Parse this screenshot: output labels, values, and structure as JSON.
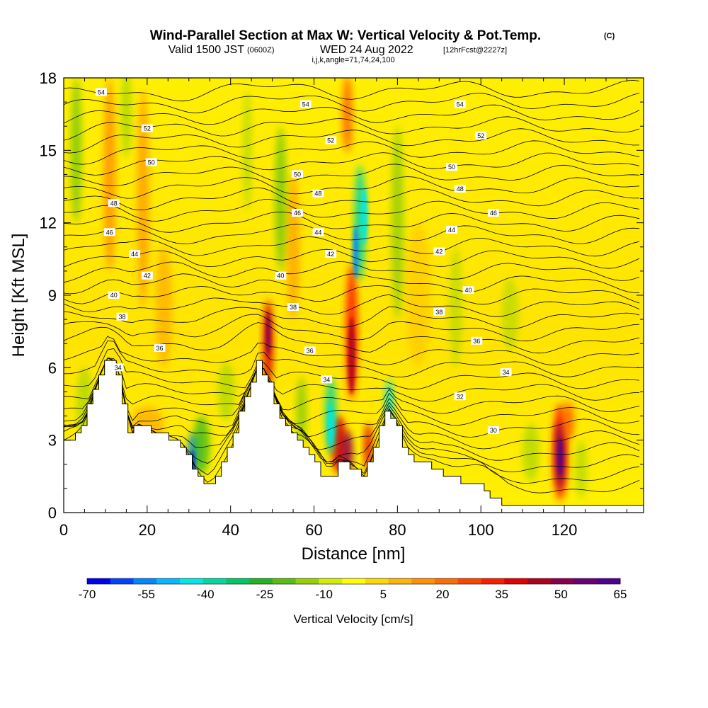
{
  "title": {
    "main": "Wind-Parallel Section at Max W: Vertical Velocity & Pot.Temp.",
    "units": "(C)",
    "valid_prefix": "Valid 1500 JST",
    "valid_utc": "(0600Z)",
    "valid_date": "WED 24 Aug 2022",
    "forecast": "[12hrFcst@2227z]",
    "params": "i,j,k,angle=71,74,24,100"
  },
  "chart_data": {
    "type": "heatmap",
    "xlabel": "Distance [nm]",
    "ylabel": "Height [Kft MSL]",
    "xlim": [
      0,
      139
    ],
    "ylim": [
      0,
      18
    ],
    "x_ticks": [
      0,
      20,
      40,
      60,
      80,
      100,
      120
    ],
    "y_ticks": [
      0,
      3,
      6,
      9,
      12,
      15,
      18
    ],
    "colorbar": {
      "title": "Vertical Velocity [cm/s]",
      "tick_labels": [
        "-70",
        "-55",
        "-40",
        "-25",
        "-10",
        "5",
        "20",
        "35",
        "50",
        "65"
      ],
      "colors": [
        "#0000f0",
        "#0044ff",
        "#0088ff",
        "#00bbff",
        "#00e8e8",
        "#00d8a0",
        "#00c864",
        "#22b422",
        "#58bf10",
        "#96d200",
        "#d4ee00",
        "#ffff00",
        "#ffd800",
        "#ffb400",
        "#ff9000",
        "#ff6c00",
        "#ff4400",
        "#ff1c00",
        "#e00000",
        "#b00020",
        "#8a0050",
        "#6a0078",
        "#500090"
      ]
    },
    "terrain_profile": [
      [
        0,
        3
      ],
      [
        3,
        3.2
      ],
      [
        5,
        3.6
      ],
      [
        7,
        4.8
      ],
      [
        9,
        5.8
      ],
      [
        11,
        6.6
      ],
      [
        12,
        6.3
      ],
      [
        14,
        5.4
      ],
      [
        15,
        4.2
      ],
      [
        16,
        3.3
      ],
      [
        17,
        3.3
      ],
      [
        18,
        3.6
      ],
      [
        20,
        3.5
      ],
      [
        22,
        3.3
      ],
      [
        25,
        3.2
      ],
      [
        28,
        3.0
      ],
      [
        30,
        2.4
      ],
      [
        31,
        2.0
      ],
      [
        33,
        1.5
      ],
      [
        35,
        1.0
      ],
      [
        37,
        1.6
      ],
      [
        39,
        2.3
      ],
      [
        41,
        3.0
      ],
      [
        43,
        4.3
      ],
      [
        45,
        5.3
      ],
      [
        47,
        6.3
      ],
      [
        49,
        5.6
      ],
      [
        51,
        4.6
      ],
      [
        53,
        3.6
      ],
      [
        55,
        3.3
      ],
      [
        57,
        3.1
      ],
      [
        59,
        2.6
      ],
      [
        61,
        2.0
      ],
      [
        63,
        1.4
      ],
      [
        65,
        1.6
      ],
      [
        66,
        2.0
      ],
      [
        68,
        2.0
      ],
      [
        70,
        1.8
      ],
      [
        72,
        1.4
      ],
      [
        74,
        2.3
      ],
      [
        76,
        3.3
      ],
      [
        78,
        4.3
      ],
      [
        80,
        3.7
      ],
      [
        82,
        2.8
      ],
      [
        84,
        2.3
      ],
      [
        86,
        2.0
      ],
      [
        88,
        2.0
      ],
      [
        90,
        1.8
      ],
      [
        92,
        1.6
      ],
      [
        94,
        1.4
      ],
      [
        96,
        1.3
      ],
      [
        98,
        1.2
      ],
      [
        100,
        1.1
      ],
      [
        102,
        0.8
      ],
      [
        104,
        0.6
      ],
      [
        106,
        0.3
      ],
      [
        139,
        0.3
      ]
    ],
    "isentrope_labels": [
      {
        "label": "54",
        "x": 9,
        "y": 17.4
      },
      {
        "label": "54",
        "x": 58,
        "y": 16.9
      },
      {
        "label": "54",
        "x": 95,
        "y": 16.9
      },
      {
        "label": "52",
        "x": 20,
        "y": 15.9
      },
      {
        "label": "52",
        "x": 64,
        "y": 15.4
      },
      {
        "label": "52",
        "x": 100,
        "y": 15.6
      },
      {
        "label": "50",
        "x": 21,
        "y": 14.5
      },
      {
        "label": "50",
        "x": 56,
        "y": 14.0
      },
      {
        "label": "50",
        "x": 93,
        "y": 14.3
      },
      {
        "label": "48",
        "x": 12,
        "y": 12.8
      },
      {
        "label": "48",
        "x": 61,
        "y": 13.2
      },
      {
        "label": "48",
        "x": 95,
        "y": 13.4
      },
      {
        "label": "46",
        "x": 11,
        "y": 11.6
      },
      {
        "label": "46",
        "x": 56,
        "y": 12.4
      },
      {
        "label": "46",
        "x": 103,
        "y": 12.4
      },
      {
        "label": "44",
        "x": 17,
        "y": 10.7
      },
      {
        "label": "44",
        "x": 61,
        "y": 11.6
      },
      {
        "label": "44",
        "x": 93,
        "y": 11.7
      },
      {
        "label": "42",
        "x": 20,
        "y": 9.8
      },
      {
        "label": "42",
        "x": 64,
        "y": 10.7
      },
      {
        "label": "42",
        "x": 90,
        "y": 10.8
      },
      {
        "label": "40",
        "x": 12,
        "y": 9.0
      },
      {
        "label": "40",
        "x": 52,
        "y": 9.8
      },
      {
        "label": "40",
        "x": 97,
        "y": 9.2
      },
      {
        "label": "38",
        "x": 14,
        "y": 8.1
      },
      {
        "label": "38",
        "x": 55,
        "y": 8.5
      },
      {
        "label": "38",
        "x": 90,
        "y": 8.3
      },
      {
        "label": "36",
        "x": 23,
        "y": 6.8
      },
      {
        "label": "36",
        "x": 59,
        "y": 6.7
      },
      {
        "label": "36",
        "x": 99,
        "y": 7.1
      },
      {
        "label": "34",
        "x": 13,
        "y": 6.0
      },
      {
        "label": "34",
        "x": 63,
        "y": 5.5
      },
      {
        "label": "34",
        "x": 106,
        "y": 5.8
      },
      {
        "label": "32",
        "x": 95,
        "y": 4.8
      },
      {
        "label": "30",
        "x": 103,
        "y": 3.4
      }
    ]
  }
}
